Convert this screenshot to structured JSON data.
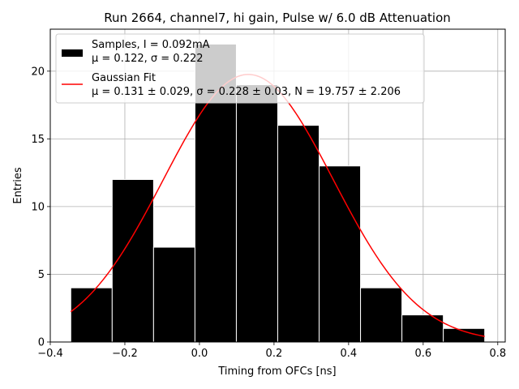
{
  "chart_data": {
    "type": "bar",
    "title": "Run 2664, channel7, hi gain, Pulse w/ 6.0 dB Attenuation",
    "xlabel": "Timing from OFCs [ns]",
    "ylabel": "Entries",
    "xlim": [
      -0.4,
      0.82
    ],
    "ylim": [
      0,
      23.1
    ],
    "xticks": [
      -0.4,
      -0.2,
      0.0,
      0.2,
      0.4,
      0.6,
      0.8
    ],
    "xtick_labels": [
      "−0.4",
      "−0.2",
      "0.0",
      "0.2",
      "0.4",
      "0.6",
      "0.8"
    ],
    "yticks": [
      0,
      5,
      10,
      15,
      20
    ],
    "ytick_labels": [
      "0",
      "5",
      "10",
      "15",
      "20"
    ],
    "grid": true,
    "legend_position": "top-left",
    "histogram": {
      "bin_edges": [
        -0.345,
        -0.234,
        -0.123,
        -0.012,
        0.099,
        0.21,
        0.321,
        0.432,
        0.543,
        0.654,
        0.765
      ],
      "counts": [
        4,
        12,
        7,
        22,
        19,
        16,
        13,
        4,
        2,
        1
      ],
      "color": "#000000",
      "edge_color": "#ffffff"
    },
    "fit": {
      "mu": 0.131,
      "sigma": 0.228,
      "N": 19.757,
      "x_range": [
        -0.345,
        0.765
      ],
      "color": "#ff0000"
    },
    "legend": [
      {
        "kind": "patch",
        "color": "#000000",
        "line1": "Samples, I = 0.092mA",
        "line2": "μ = 0.122, σ = 0.222"
      },
      {
        "kind": "line",
        "color": "#ff0000",
        "line1": "Gaussian Fit",
        "line2": "μ = 0.131 ± 0.029, σ = 0.228 ± 0.03, N = 19.757 ± 2.206"
      }
    ]
  }
}
